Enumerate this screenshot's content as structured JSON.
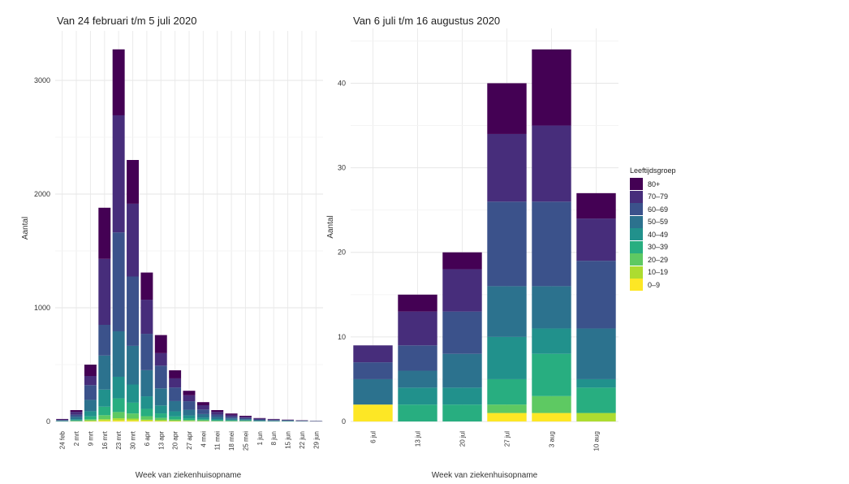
{
  "chart_data": [
    {
      "type": "bar",
      "stacked": true,
      "title": "Van 24 februari t/m 5 juli 2020",
      "xlabel": "Week van ziekenhuisopname",
      "ylabel": "Aantal",
      "ylim": [
        0,
        3400
      ],
      "yticks": [
        0,
        1000,
        2000,
        3000
      ],
      "grid": true,
      "categories": [
        "24 feb",
        "2 mrt",
        "9 mrt",
        "16 mrt",
        "23 mrt",
        "30 mrt",
        "6 apr",
        "13 apr",
        "20 apr",
        "27 apr",
        "4 mei",
        "11 mei",
        "18 mei",
        "25 mei",
        "1 jun",
        "8 jun",
        "15 jun",
        "22 jun",
        "29 jun"
      ],
      "series": [
        {
          "name": "0–9",
          "values": [
            0,
            1,
            3,
            8,
            10,
            10,
            6,
            4,
            3,
            2,
            2,
            1,
            1,
            1,
            0,
            0,
            0,
            0,
            0
          ]
        },
        {
          "name": "10–19",
          "values": [
            0,
            1,
            5,
            12,
            18,
            15,
            10,
            7,
            4,
            3,
            2,
            1,
            1,
            1,
            0,
            0,
            0,
            0,
            0
          ]
        },
        {
          "name": "20–29",
          "values": [
            1,
            3,
            12,
            35,
            55,
            45,
            30,
            20,
            12,
            8,
            6,
            3,
            2,
            2,
            1,
            1,
            1,
            0,
            0
          ]
        },
        {
          "name": "30–39",
          "values": [
            1,
            5,
            25,
            75,
            120,
            95,
            65,
            40,
            25,
            15,
            10,
            6,
            4,
            3,
            2,
            1,
            1,
            1,
            0
          ]
        },
        {
          "name": "40–49",
          "values": [
            2,
            10,
            45,
            150,
            190,
            160,
            110,
            70,
            45,
            25,
            15,
            10,
            7,
            5,
            3,
            2,
            2,
            1,
            1
          ]
        },
        {
          "name": "50–59",
          "values": [
            4,
            20,
            100,
            300,
            400,
            340,
            230,
            150,
            90,
            50,
            30,
            18,
            12,
            8,
            5,
            4,
            3,
            2,
            1
          ]
        },
        {
          "name": "60–69",
          "values": [
            5,
            20,
            130,
            270,
            870,
            610,
            320,
            200,
            120,
            75,
            40,
            22,
            15,
            10,
            7,
            5,
            3,
            2,
            2
          ]
        },
        {
          "name": "70–79",
          "values": [
            5,
            25,
            80,
            580,
            1030,
            640,
            300,
            110,
            80,
            52,
            38,
            24,
            16,
            12,
            8,
            6,
            4,
            3,
            1
          ]
        },
        {
          "name": "80+",
          "values": [
            4,
            15,
            100,
            450,
            580,
            385,
            239,
            159,
            71,
            40,
            27,
            15,
            12,
            8,
            4,
            3,
            2,
            2,
            1
          ]
        }
      ]
    },
    {
      "type": "bar",
      "stacked": true,
      "title": "Van 6 juli t/m 16 augustus 2020",
      "xlabel": "Week van ziekenhuisopname",
      "ylabel": "Aantal",
      "ylim": [
        0,
        46
      ],
      "yticks": [
        0,
        10,
        20,
        30,
        40
      ],
      "grid": true,
      "categories": [
        "6 jul",
        "13 jul",
        "20 jul",
        "27 jul",
        "3 aug",
        "10 aug"
      ],
      "series": [
        {
          "name": "0–9",
          "values": [
            2,
            0,
            0,
            1,
            1,
            0
          ]
        },
        {
          "name": "10–19",
          "values": [
            0,
            0,
            0,
            0,
            0,
            1
          ]
        },
        {
          "name": "20–29",
          "values": [
            0,
            0,
            0,
            1,
            2,
            0
          ]
        },
        {
          "name": "30–39",
          "values": [
            0,
            2,
            2,
            3,
            5,
            3
          ]
        },
        {
          "name": "40–49",
          "values": [
            0,
            2,
            2,
            5,
            3,
            1
          ]
        },
        {
          "name": "50–59",
          "values": [
            3,
            2,
            4,
            6,
            5,
            6
          ]
        },
        {
          "name": "60–69",
          "values": [
            2,
            3,
            5,
            10,
            10,
            8
          ]
        },
        {
          "name": "70–79",
          "values": [
            2,
            4,
            5,
            8,
            9,
            5
          ]
        },
        {
          "name": "80+",
          "values": [
            0,
            2,
            2,
            6,
            9,
            3
          ]
        }
      ]
    }
  ],
  "legend": {
    "title": "Leeftijdsgroep",
    "items": [
      {
        "label": "80+",
        "color": "#440154"
      },
      {
        "label": "70–79",
        "color": "#472d7b"
      },
      {
        "label": "60–69",
        "color": "#3b528b"
      },
      {
        "label": "50–59",
        "color": "#2c728e"
      },
      {
        "label": "40–49",
        "color": "#21918c"
      },
      {
        "label": "30–39",
        "color": "#28ae80"
      },
      {
        "label": "20–29",
        "color": "#5ec962"
      },
      {
        "label": "10–19",
        "color": "#addc30"
      },
      {
        "label": "0–9",
        "color": "#fde725"
      }
    ]
  }
}
